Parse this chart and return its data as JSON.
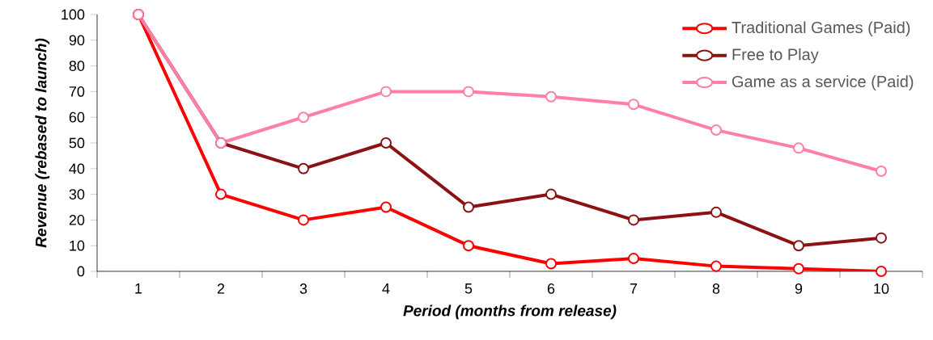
{
  "chart_data": {
    "type": "line",
    "xlabel": "Period (months from release)",
    "ylabel": "Revenue (rebased to launch)",
    "categories": [
      "1",
      "2",
      "3",
      "4",
      "5",
      "6",
      "7",
      "8",
      "9",
      "10"
    ],
    "series": [
      {
        "name": "Traditional Games (Paid)",
        "color": "#ff0000",
        "values": [
          100,
          30,
          20,
          25,
          10,
          3,
          5,
          2,
          1,
          0
        ]
      },
      {
        "name": "Free to Play",
        "color": "#8b1212",
        "values": [
          100,
          50,
          40,
          50,
          25,
          30,
          20,
          23,
          10,
          13
        ]
      },
      {
        "name": "Game as a service (Paid)",
        "color": "#ff7fa6",
        "values": [
          100,
          50,
          60,
          70,
          70,
          68,
          65,
          55,
          48,
          39
        ]
      }
    ],
    "ylim": [
      0,
      100
    ],
    "yticks": [
      0,
      10,
      20,
      30,
      40,
      50,
      60,
      70,
      80,
      90,
      100
    ],
    "grid": false,
    "legend": "top right",
    "marker": "circle",
    "line_style": "solid"
  }
}
